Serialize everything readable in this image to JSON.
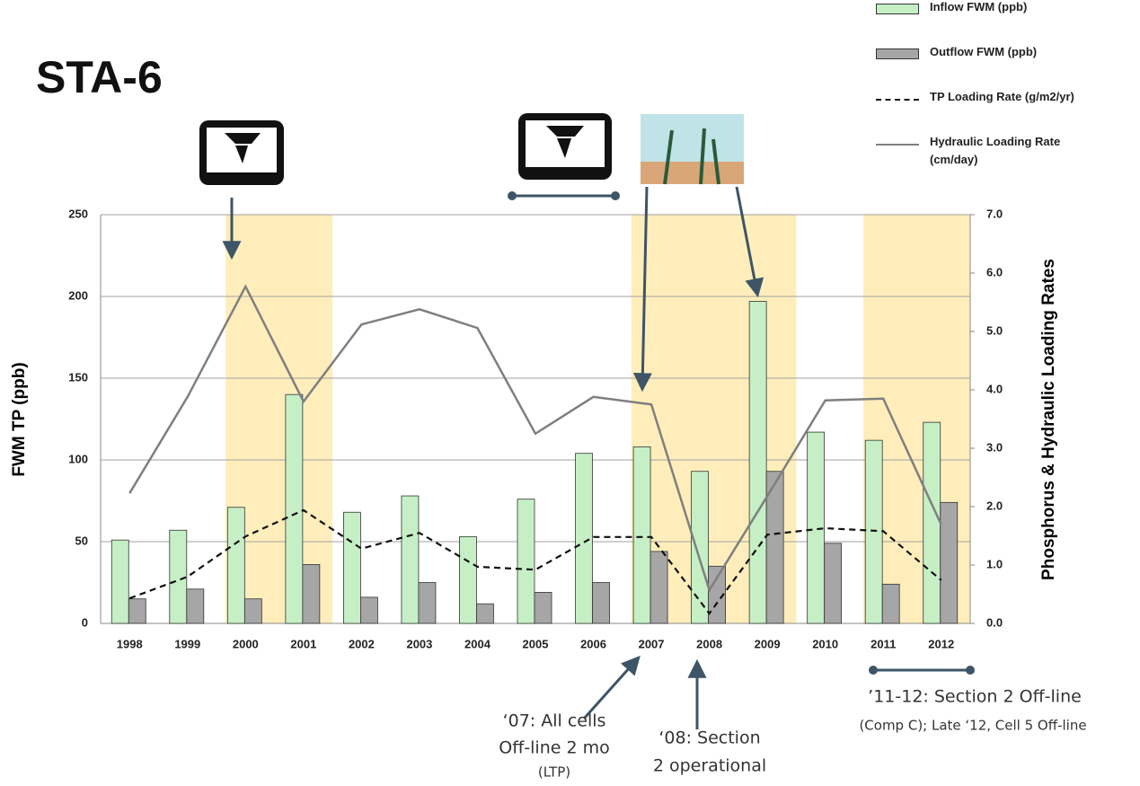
{
  "chart_data": {
    "type": "combo",
    "title": "STA-6",
    "y_label": "FWM TP (ppb)",
    "y2_label": "Phosphorus & Hydraulic Loading Rates",
    "categories": [
      "1998",
      "1999",
      "2000",
      "2001",
      "2002",
      "2003",
      "2004",
      "2005",
      "2006",
      "2007",
      "2008",
      "2009",
      "2010",
      "2011",
      "2012"
    ],
    "series": [
      {
        "name": "Inflow FWM (ppb)",
        "type": "bar",
        "color": "#c6efc6",
        "values": [
          51,
          57,
          71,
          140,
          68,
          78,
          53,
          76,
          104,
          108,
          93,
          197,
          117,
          112,
          123
        ]
      },
      {
        "name": "Outflow FWM (ppb)",
        "type": "bar",
        "color": "#a6a6a6",
        "values": [
          15,
          21,
          15,
          36,
          16,
          25,
          12,
          19,
          25,
          44,
          35,
          93,
          49,
          24,
          74
        ]
      },
      {
        "name": "TP Loading Rate (g/m2/yr)",
        "type": "line",
        "dashed": true,
        "color": "#111111",
        "axis": "y2",
        "values": [
          0.43,
          0.8,
          1.49,
          1.94,
          1.28,
          1.55,
          0.97,
          0.92,
          1.48,
          1.48,
          0.17,
          1.52,
          1.63,
          1.58,
          0.74
        ]
      },
      {
        "name": "Hydraulic Loading Rate (cm/day)",
        "type": "line",
        "dashed": false,
        "color": "#7f7f7f",
        "axis": "y2",
        "values": [
          2.23,
          3.88,
          5.77,
          3.8,
          5.12,
          5.38,
          5.06,
          3.25,
          3.88,
          3.75,
          0.57,
          2.18,
          3.82,
          3.85,
          1.69
        ]
      }
    ],
    "shaded": [
      {
        "from": "2000",
        "to": "2001"
      },
      {
        "from": "2007",
        "to": "2009"
      },
      {
        "from": "2011",
        "to": "2012"
      }
    ],
    "shade_color": "#ffeebb",
    "ylim": [
      0,
      250
    ],
    "yticks": [
      0,
      50,
      100,
      150,
      200,
      250
    ],
    "y2lim": [
      0,
      7
    ],
    "y2ticks": [
      {
        "value": 0,
        "label": "0.0"
      },
      {
        "value": 1,
        "label": "1.0"
      },
      {
        "value": 2,
        "label": "2.0"
      },
      {
        "value": 3,
        "label": "3.0"
      },
      {
        "value": 4,
        "label": "4.0"
      },
      {
        "value": 5,
        "label": "5.0"
      },
      {
        "value": 6,
        "label": "6.0"
      },
      {
        "value": 7,
        "label": "7.0"
      }
    ],
    "grid": true,
    "annotations": [
      "‘07: All cells",
      "Off-line 2 mo",
      "(LTP)",
      "‘08: Section",
      "2 operational",
      "’11-12: Section 2 Off-line",
      "(Comp C);  Late ‘12, Cell 5 Off-line"
    ]
  }
}
